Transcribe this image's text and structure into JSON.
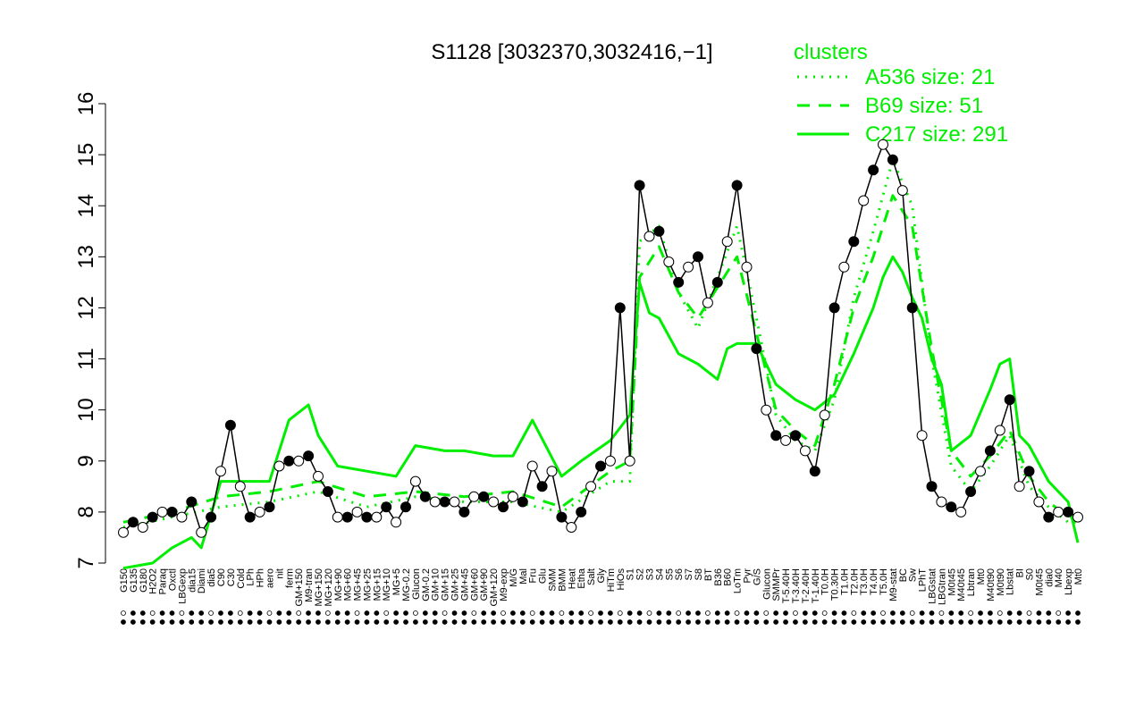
{
  "chart_data": {
    "type": "line",
    "title": "S1128 [3032370,3032416,−1]",
    "xlabel": "",
    "ylabel": "",
    "ylim": [
      7,
      16
    ],
    "yticks": [
      7,
      8,
      9,
      10,
      11,
      12,
      13,
      14,
      15,
      16
    ],
    "grid": false,
    "colors": {
      "data": "#000000",
      "cluster": "#00ee00"
    },
    "legend": {
      "title": "clusters",
      "placement": "top-right",
      "entries": [
        {
          "label": "A536 size: 21",
          "style": "dotted"
        },
        {
          "label": "B69 size: 51",
          "style": "dashed"
        },
        {
          "label": "C217 size: 291",
          "style": "solid"
        }
      ]
    },
    "x_labels": [
      "G150",
      "G135",
      "G180",
      "H2O2",
      "Paraq",
      "Oxctl",
      "LBGexp",
      "dia15",
      "Diami",
      "dia5",
      "C90",
      "C30",
      "Cold",
      "LPh",
      "HPh",
      "aero",
      "nit",
      "ferm",
      "GM+150",
      "M9-tran",
      "MG+150",
      "MG+120",
      "MG+90",
      "MG+60",
      "MG+45",
      "MG+25",
      "MG+15",
      "MG+10",
      "MG+5",
      "MG-0.2",
      "Glucon",
      "GM-0.2",
      "GM+10",
      "GM+15",
      "GM+25",
      "GM+45",
      "GM+60",
      "GM+90",
      "GM+120",
      "M9-exp",
      "M/G",
      "Mal",
      "Fru",
      "Glu",
      "SMM",
      "BMM",
      "Heat",
      "Etha",
      "Salt",
      "Gly",
      "HiTm",
      "HiOs",
      "S1",
      "S2",
      "S3",
      "S4",
      "S5",
      "S6",
      "S7",
      "S8",
      "BT",
      "B36",
      "B60",
      "LoTm",
      "Pyr",
      "G/S",
      "Glucon",
      "SMMPr",
      "T-5.40H",
      "T-3.40H",
      "T-2.40H",
      "T-1.40H",
      "T0.0H",
      "T0.30H",
      "T1.0H",
      "T2.0H",
      "T3.0H",
      "T4.0H",
      "T5.0H",
      "M9-stat",
      "BC",
      "Sw",
      "LPhT",
      "LBGstat",
      "LBGtran",
      "M0t45",
      "M40t45",
      "Lbtran",
      "Mt0",
      "M40t90",
      "M0t90",
      "Lbstat",
      "BI",
      "S0",
      "M0t45",
      "dia0",
      "M40",
      "Lbexp",
      "Mt0"
    ],
    "series": [
      {
        "style": "points",
        "x": [
          0,
          1,
          2,
          3,
          4,
          5,
          6,
          7,
          8,
          9,
          10,
          11,
          12,
          13,
          14,
          15,
          16,
          17,
          18,
          19,
          20,
          21,
          22,
          23,
          24,
          25,
          26,
          27,
          28,
          29,
          30,
          31,
          32,
          33,
          34,
          35,
          36,
          37,
          38,
          39,
          40,
          41,
          42,
          43,
          44,
          45,
          46,
          47,
          48,
          49,
          50,
          51,
          52,
          53,
          54,
          55,
          56,
          57,
          58,
          59,
          60,
          61,
          62,
          63,
          64,
          65,
          66,
          67,
          68,
          69,
          70,
          71,
          72,
          73,
          74,
          75,
          76,
          77,
          78,
          79,
          80,
          81,
          82,
          83,
          84,
          85,
          86,
          87,
          88,
          89,
          90,
          91,
          92,
          93,
          94,
          95,
          96,
          97,
          98
        ],
        "values": [
          7.6,
          7.8,
          7.7,
          7.9,
          8.0,
          8.0,
          7.9,
          8.2,
          7.6,
          7.9,
          8.8,
          9.7,
          8.5,
          7.9,
          8.0,
          8.1,
          8.9,
          9.0,
          9.0,
          9.1,
          8.7,
          8.4,
          7.9,
          7.9,
          8.0,
          7.9,
          7.9,
          8.1,
          7.8,
          8.1,
          8.6,
          8.3,
          8.2,
          8.2,
          8.2,
          8.0,
          8.3,
          8.3,
          8.2,
          8.1,
          8.3,
          8.2,
          8.9,
          8.5,
          8.8,
          7.9,
          7.7,
          8.0,
          8.5,
          8.9,
          9.0,
          12.0,
          9.0,
          14.4,
          13.4,
          13.5,
          12.9,
          12.5,
          12.8,
          13.0,
          12.1,
          12.5,
          13.3,
          14.4,
          12.8,
          11.2,
          10.0,
          9.5,
          9.4,
          9.5,
          9.2,
          8.8,
          9.9,
          12.0,
          12.8,
          13.3,
          14.1,
          14.7,
          15.2,
          14.9,
          14.3,
          12.0,
          9.5,
          8.5,
          8.2,
          8.1,
          8.0,
          8.4,
          8.8,
          9.2,
          9.6,
          10.2,
          8.5,
          8.8,
          8.2,
          7.9,
          8.0,
          8.0,
          7.9
        ]
      },
      {
        "name": "A536 size: 21",
        "style": "dotted",
        "x": [
          0,
          5,
          10,
          15,
          20,
          25,
          30,
          35,
          40,
          45,
          50,
          52,
          53,
          55,
          57,
          59,
          61,
          63,
          65,
          67,
          69,
          71,
          73,
          75,
          77,
          79,
          81,
          83,
          85,
          87,
          89,
          91,
          93,
          95,
          97,
          98
        ],
        "values": [
          7.7,
          7.9,
          8.1,
          8.2,
          8.4,
          8.1,
          8.3,
          8.2,
          8.2,
          8.0,
          8.6,
          8.6,
          13.3,
          13.6,
          12.3,
          11.6,
          12.6,
          13.6,
          11.8,
          9.9,
          9.4,
          9.2,
          10.2,
          12.2,
          13.5,
          14.9,
          14.0,
          11.0,
          8.9,
          8.4,
          8.9,
          9.5,
          8.5,
          8.1,
          7.8,
          7.8
        ]
      },
      {
        "name": "B69 size: 51",
        "style": "dashed",
        "x": [
          0,
          5,
          10,
          15,
          20,
          25,
          30,
          35,
          40,
          45,
          50,
          52,
          53,
          55,
          57,
          59,
          61,
          63,
          65,
          67,
          69,
          71,
          73,
          75,
          77,
          79,
          81,
          83,
          85,
          87,
          89,
          91,
          93,
          95,
          97,
          98
        ],
        "values": [
          7.8,
          8.0,
          8.3,
          8.4,
          8.6,
          8.3,
          8.4,
          8.3,
          8.4,
          8.1,
          8.8,
          9.0,
          12.6,
          13.2,
          12.3,
          11.8,
          12.4,
          13.0,
          11.5,
          10.0,
          9.6,
          9.3,
          10.5,
          12.0,
          13.0,
          14.2,
          13.6,
          11.2,
          9.2,
          8.7,
          9.1,
          9.6,
          8.7,
          8.2,
          7.9,
          7.9
        ]
      },
      {
        "name": "C217 size: 291",
        "style": "solid",
        "x": [
          0,
          3,
          5,
          7,
          8,
          10,
          12,
          15,
          17,
          19,
          20,
          22,
          25,
          28,
          30,
          33,
          35,
          38,
          40,
          42,
          45,
          47,
          50,
          52,
          53,
          54,
          55,
          57,
          59,
          61,
          62,
          63,
          65,
          67,
          69,
          71,
          73,
          75,
          77,
          78,
          79,
          80,
          81,
          82,
          83,
          84,
          85,
          87,
          89,
          90,
          91,
          92,
          93,
          95,
          97,
          98
        ],
        "values": [
          6.9,
          7.0,
          7.3,
          7.5,
          7.3,
          8.6,
          8.6,
          8.6,
          9.8,
          10.1,
          9.5,
          8.9,
          8.8,
          8.7,
          9.3,
          9.2,
          9.2,
          9.1,
          9.1,
          9.8,
          8.7,
          9.0,
          9.4,
          9.9,
          12.5,
          11.9,
          11.8,
          11.1,
          10.9,
          10.6,
          11.2,
          11.3,
          11.3,
          10.5,
          10.2,
          10.0,
          10.3,
          11.1,
          12.0,
          12.6,
          13.0,
          12.7,
          12.2,
          11.8,
          11.0,
          10.5,
          9.2,
          9.5,
          10.4,
          10.9,
          11.0,
          9.5,
          9.3,
          8.6,
          8.2,
          7.4
        ]
      }
    ]
  }
}
